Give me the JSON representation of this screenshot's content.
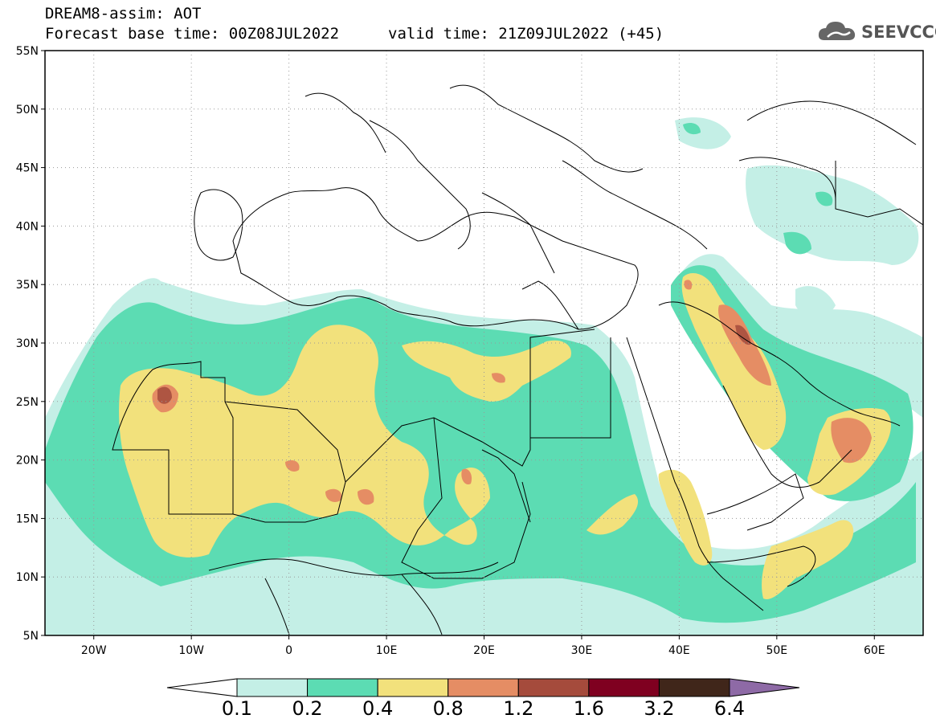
{
  "header": {
    "title_line1": "DREAM8-assim: AOT",
    "title_line2": "Forecast base time: 00Z08JUL2022",
    "valid_time": "valid time: 21Z09JUL2022 (+45)"
  },
  "logo": {
    "text": "SEEVCCC",
    "icon": "cloud-icon"
  },
  "map": {
    "lon_range": [
      -25,
      65
    ],
    "lat_range": [
      5,
      55
    ],
    "lat_ticks": [
      {
        "value": 55,
        "label": "55N"
      },
      {
        "value": 50,
        "label": "50N"
      },
      {
        "value": 45,
        "label": "45N"
      },
      {
        "value": 40,
        "label": "40N"
      },
      {
        "value": 35,
        "label": "35N"
      },
      {
        "value": 30,
        "label": "30N"
      },
      {
        "value": 25,
        "label": "25N"
      },
      {
        "value": 20,
        "label": "20N"
      },
      {
        "value": 15,
        "label": "15N"
      },
      {
        "value": 10,
        "label": "10N"
      },
      {
        "value": 5,
        "label": "5N"
      }
    ],
    "lon_ticks": [
      {
        "value": -20,
        "label": "20W"
      },
      {
        "value": -10,
        "label": "10W"
      },
      {
        "value": 0,
        "label": "0"
      },
      {
        "value": 10,
        "label": "10E"
      },
      {
        "value": 20,
        "label": "20E"
      },
      {
        "value": 30,
        "label": "30E"
      },
      {
        "value": 40,
        "label": "40E"
      },
      {
        "value": 50,
        "label": "50E"
      },
      {
        "value": 60,
        "label": "60E"
      }
    ],
    "grid": "dotted"
  },
  "colorbar": {
    "levels": [
      "0.1",
      "0.2",
      "0.4",
      "0.8",
      "1.2",
      "1.6",
      "3.2",
      "6.4"
    ],
    "colors": [
      "#ffffff",
      "#c4efe6",
      "#5cdcb3",
      "#f2e17c",
      "#e58d64",
      "#a54b3c",
      "#7f0020",
      "#40261a",
      "#8e6aa6"
    ]
  }
}
